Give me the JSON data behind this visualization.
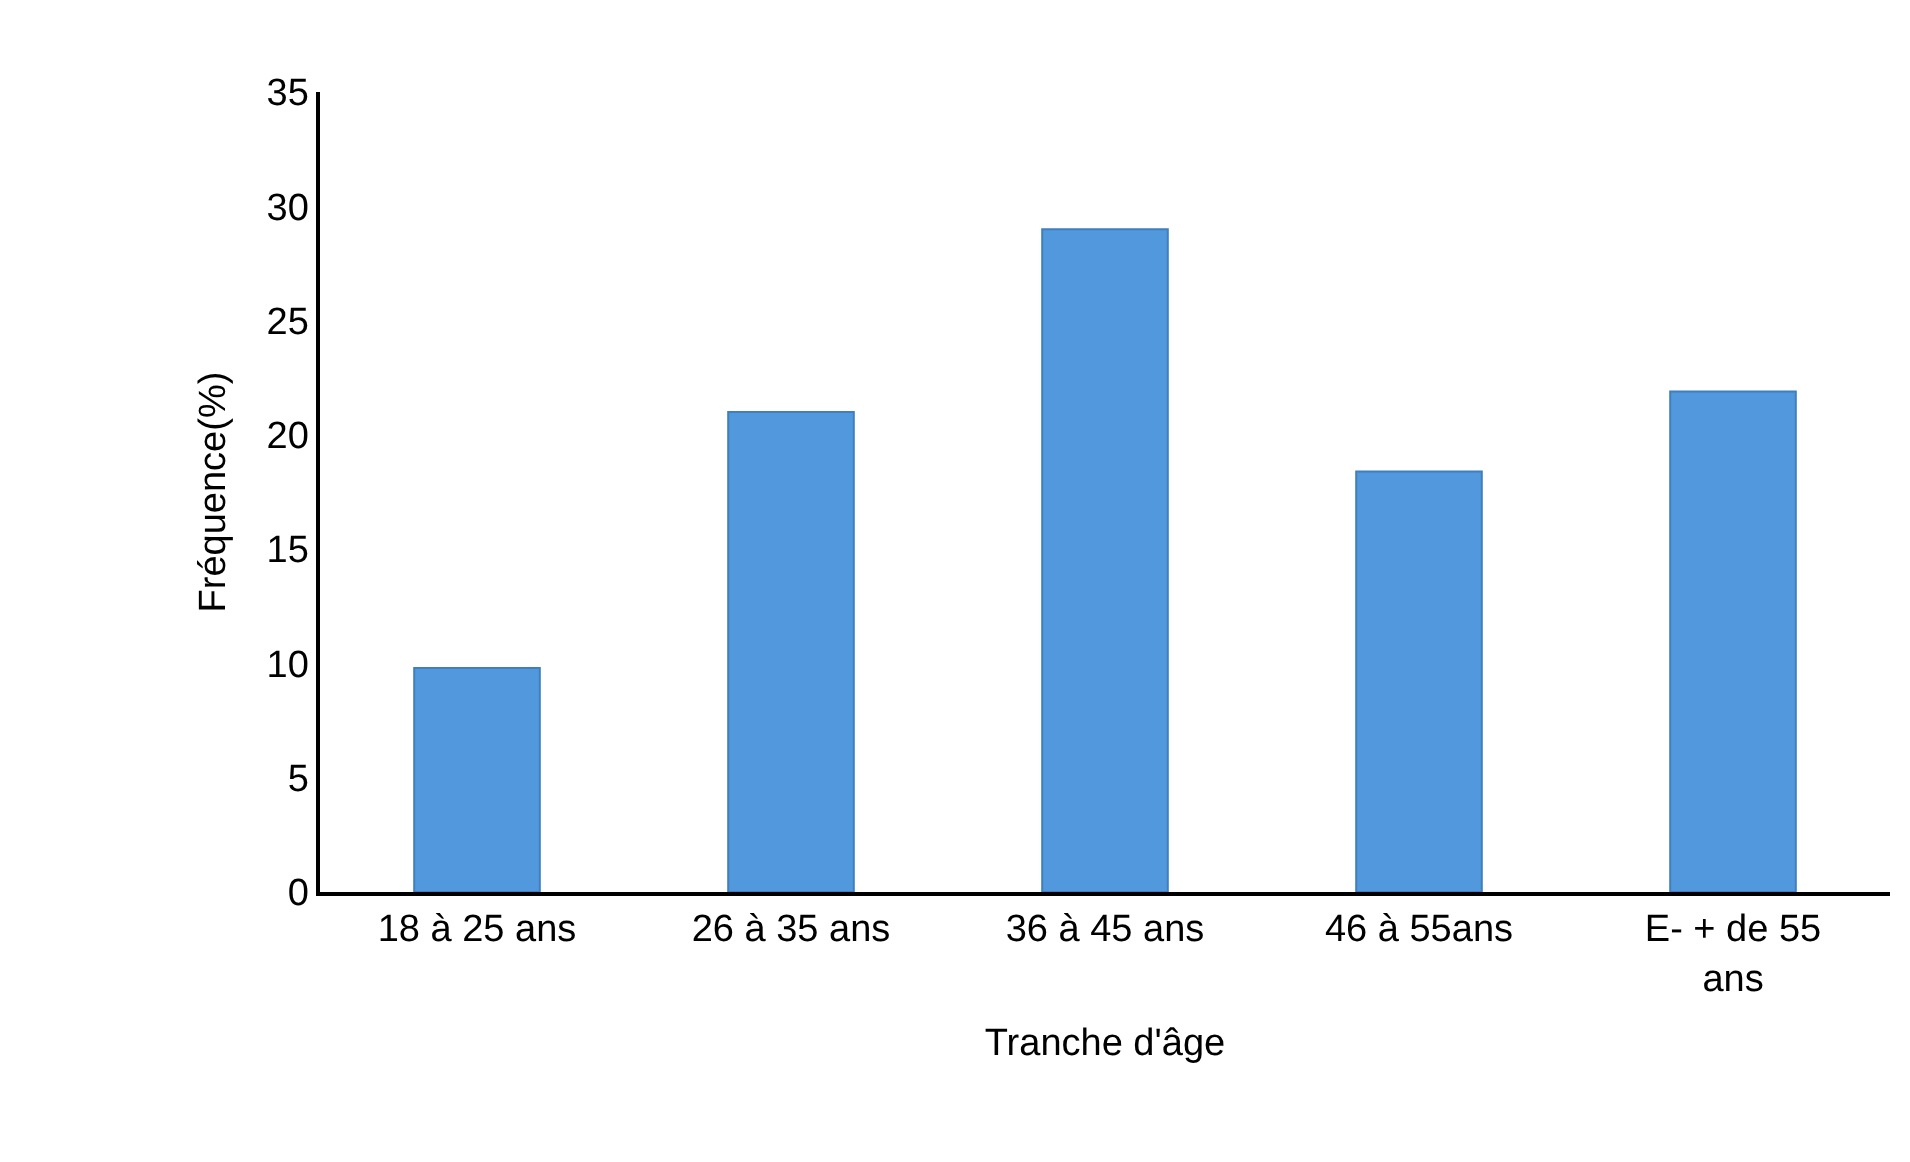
{
  "chart_data": {
    "type": "bar",
    "categories": [
      "18 à 25 ans",
      "26 à 35 ans",
      "36 à 45 ans",
      "46 à 55ans",
      "E- + de 55 ans"
    ],
    "values": [
      9.8,
      21,
      29,
      18.4,
      21.9
    ],
    "color": "#5199dc",
    "xlabel": "Tranche d'âge",
    "ylabel": "Fréquence(%)",
    "ylim": [
      0,
      35
    ],
    "yticks": [
      0,
      5,
      10,
      15,
      20,
      25,
      30,
      35
    ]
  }
}
